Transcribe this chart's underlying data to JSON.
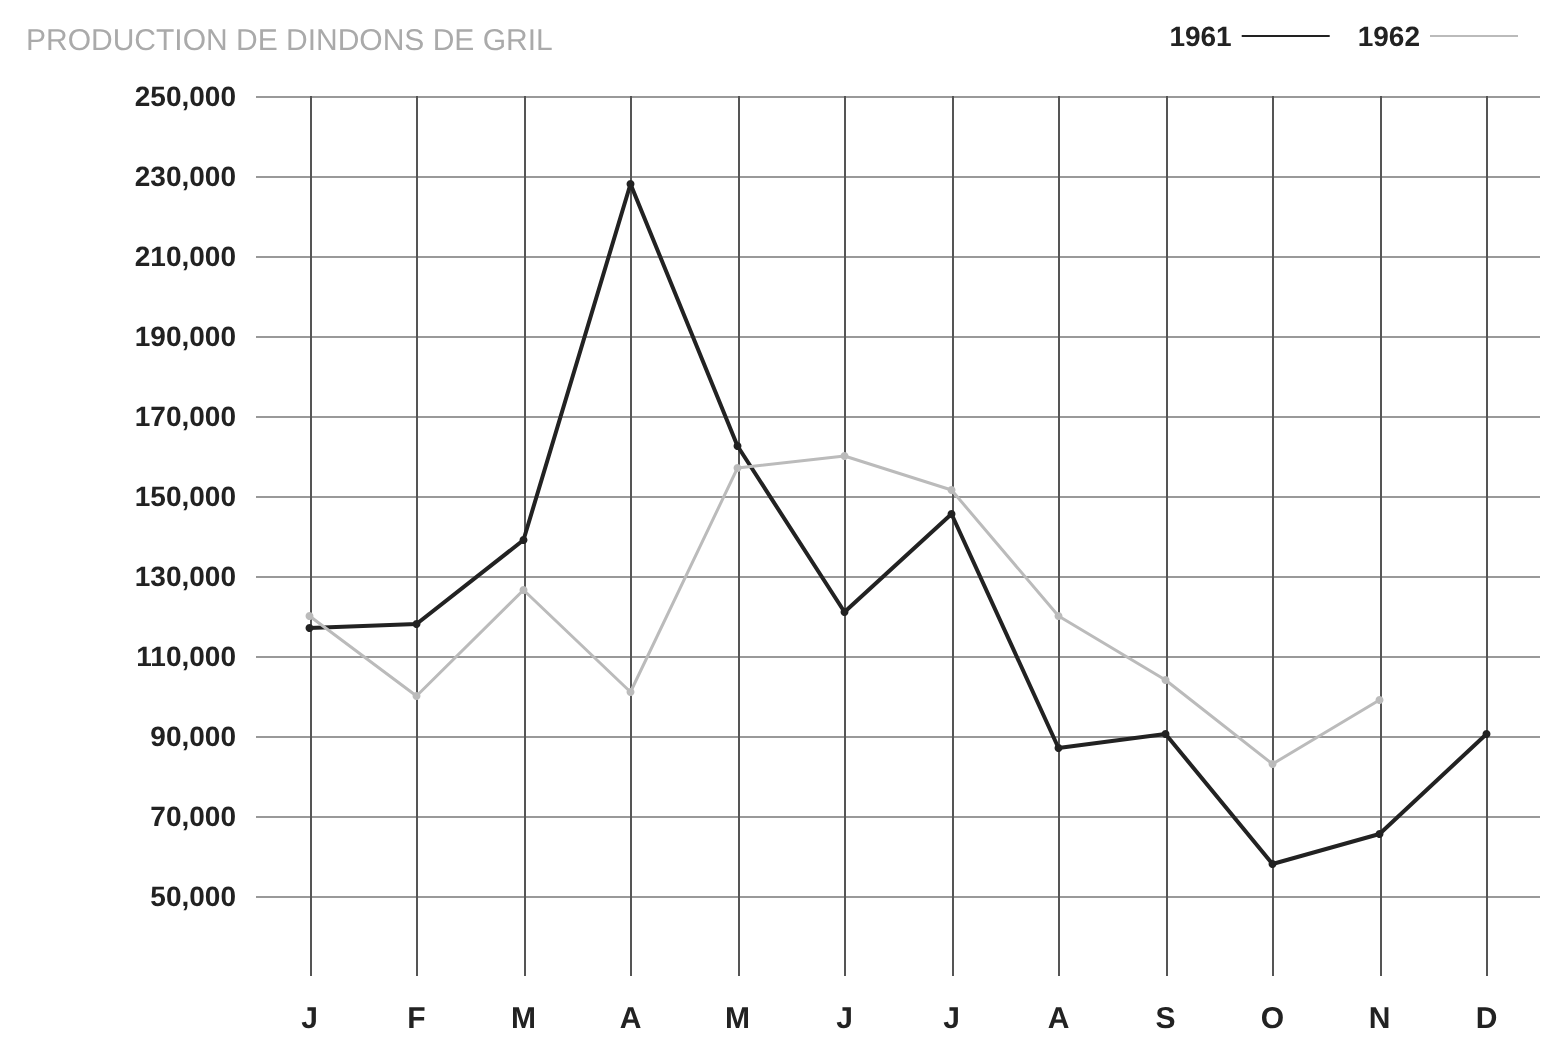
{
  "chart_data": {
    "type": "line",
    "title": "PRODUCTION DE DINDONS DE GRIL",
    "categories": [
      "J",
      "F",
      "M",
      "A",
      "M",
      "J",
      "J",
      "A",
      "S",
      "O",
      "N",
      "D"
    ],
    "series": [
      {
        "name": "1961",
        "color": "#222222",
        "values": [
          117000,
          118000,
          139000,
          228000,
          162500,
          121000,
          145500,
          87000,
          90500,
          58000,
          65500,
          90500
        ]
      },
      {
        "name": "1962",
        "color": "#bbbbbb",
        "values": [
          120000,
          100000,
          126500,
          101000,
          157000,
          160000,
          151500,
          120000,
          104000,
          83000,
          99000,
          null
        ]
      }
    ],
    "ylim": [
      30000,
      250000
    ],
    "yticks": [
      {
        "value": 50000,
        "label": "50,000"
      },
      {
        "value": 70000,
        "label": "70,000"
      },
      {
        "value": 90000,
        "label": "90,000"
      },
      {
        "value": 110000,
        "label": "110,000"
      },
      {
        "value": 130000,
        "label": "130,000"
      },
      {
        "value": 150000,
        "label": "150,000"
      },
      {
        "value": 170000,
        "label": "170,000"
      },
      {
        "value": 190000,
        "label": "190,000"
      },
      {
        "value": 210000,
        "label": "210,000"
      },
      {
        "value": 230000,
        "label": "230,000"
      },
      {
        "value": 250000,
        "label": "250,000"
      }
    ],
    "grid": true,
    "legend": "top right",
    "marker": "circle",
    "line_style": "solid"
  }
}
